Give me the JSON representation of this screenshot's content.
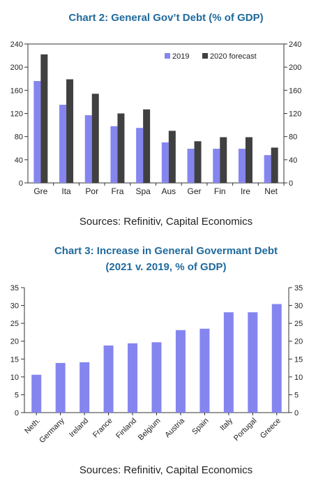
{
  "charts": [
    {
      "title": "Chart 2: General Gov’t Debt (% of GDP)",
      "source": "Sources: Refinitiv, Capital Economics"
    },
    {
      "title_line1": "Chart 3: Increase in General Govermant Debt",
      "title_line2": "(2021 v. 2019, % of GDP)",
      "source": "Sources: Refinitiv, Capital Economics"
    }
  ],
  "colors": {
    "series_2019": "#8585f0",
    "series_2020": "#404040",
    "increase": "#8585f0",
    "title": "#1f6a9c"
  },
  "chart_data": [
    {
      "type": "bar",
      "title": "Chart 2: General Gov’t Debt (% of GDP)",
      "categories": [
        "Gre",
        "Ita",
        "Por",
        "Fra",
        "Spa",
        "Aus",
        "Ger",
        "Fin",
        "Ire",
        "Net"
      ],
      "series": [
        {
          "name": "2019",
          "values": [
            176,
            135,
            117,
            98,
            95,
            70,
            59,
            59,
            59,
            48
          ]
        },
        {
          "name": "2020 forecast",
          "values": [
            222,
            179,
            154,
            120,
            127,
            90,
            72,
            79,
            79,
            61
          ]
        }
      ],
      "ylim": [
        0,
        240
      ],
      "yticks": [
        0,
        40,
        80,
        120,
        160,
        200,
        240
      ],
      "secondary_axis": true,
      "legend": "top-right"
    },
    {
      "type": "bar",
      "title": "Chart 3: Increase in General Govermant Debt (2021 v. 2019, % of GDP)",
      "categories": [
        "Neth.",
        "Germany",
        "Ireland",
        "France",
        "Finland",
        "Belgium",
        "Austria",
        "Spain",
        "Italy",
        "Portugal",
        "Greece"
      ],
      "values": [
        10.6,
        13.9,
        14.1,
        18.8,
        19.4,
        19.7,
        23.1,
        23.5,
        28.1,
        28.1,
        30.4
      ],
      "ylim": [
        0,
        35
      ],
      "yticks": [
        0,
        5,
        10,
        15,
        20,
        25,
        30,
        35
      ],
      "secondary_axis": true
    }
  ]
}
